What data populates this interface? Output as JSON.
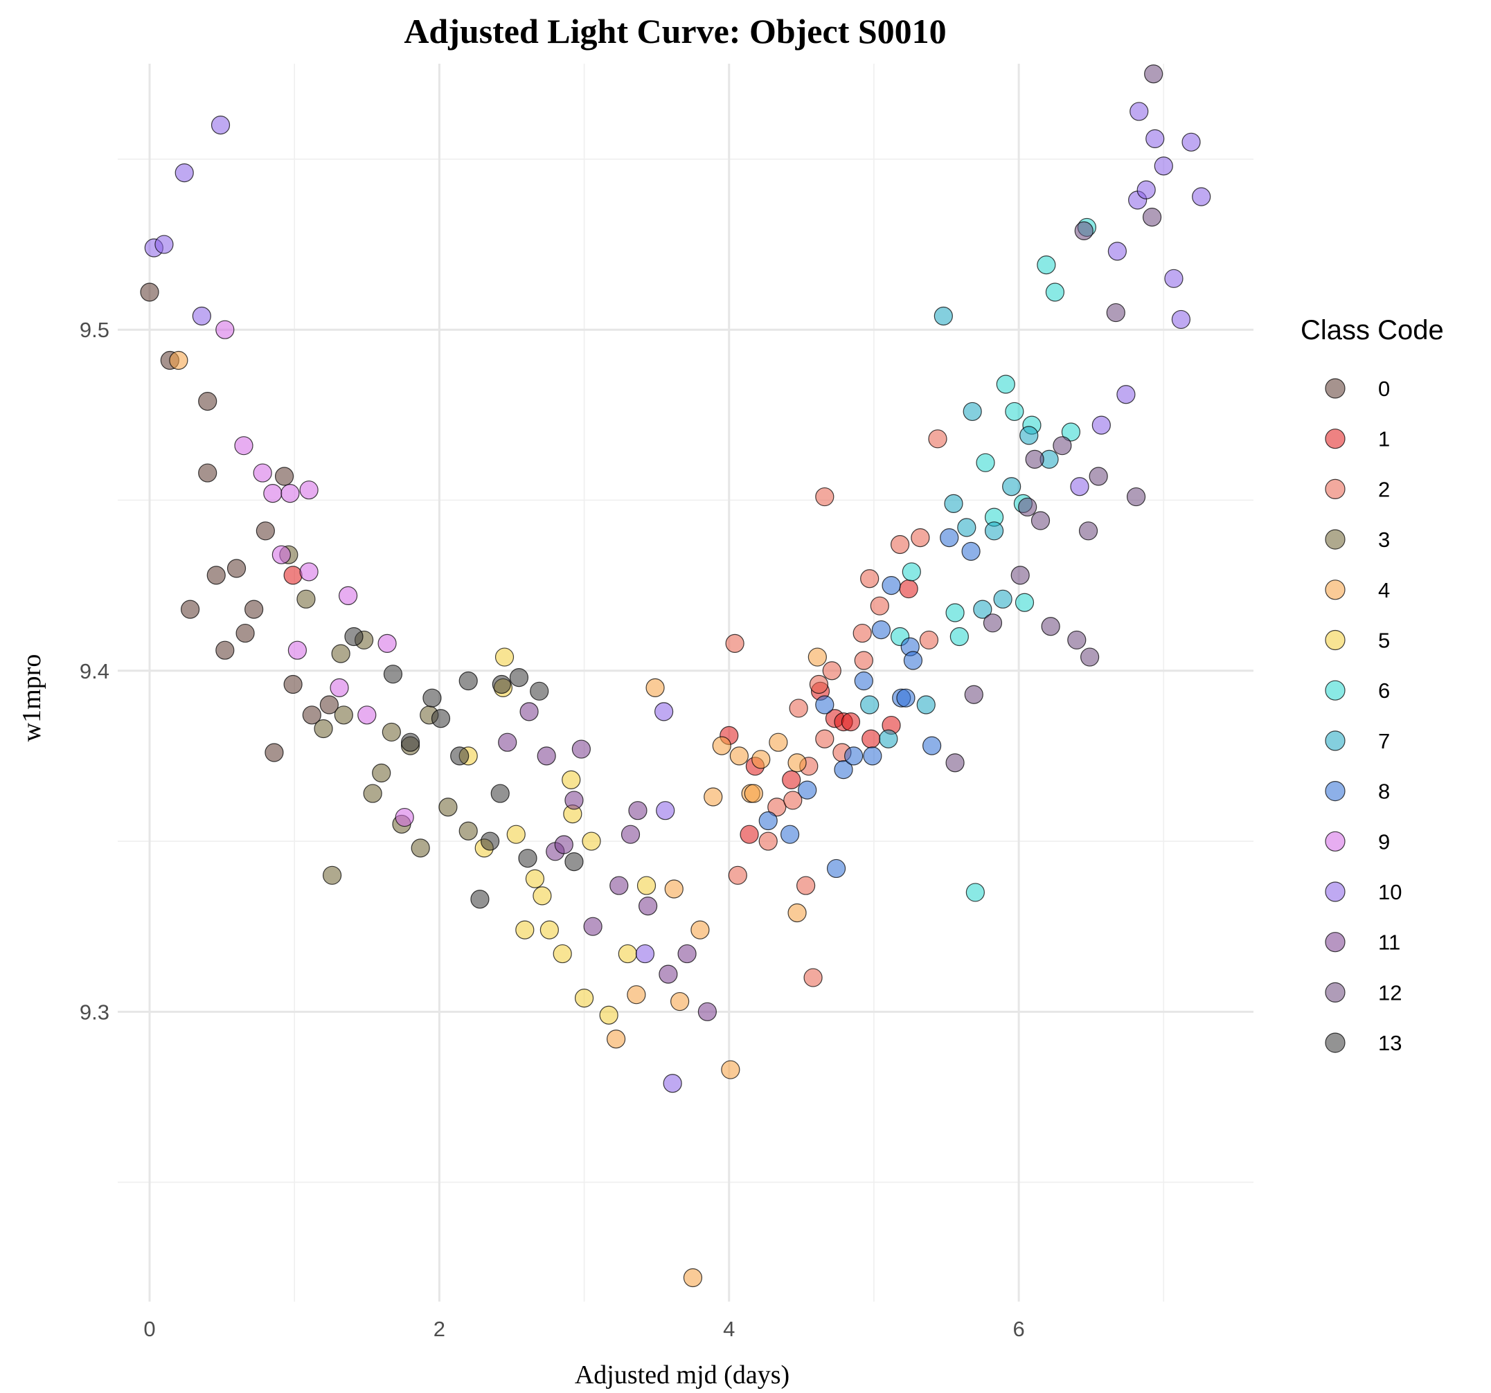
{
  "chart_data": {
    "type": "scatter",
    "title": "Adjusted Light Curve: Object S0010",
    "xlabel": "Adjusted mjd (days)",
    "ylabel": "w1mpro",
    "xlim": [
      -0.22,
      7.62
    ],
    "ylim": [
      9.215,
      9.578
    ],
    "xticks": [
      0,
      2,
      4,
      6
    ],
    "yticks": [
      9.3,
      9.4,
      9.5
    ],
    "grid": true,
    "legend": {
      "title": "Class Code",
      "placement": "right"
    },
    "series": [
      {
        "name": "0",
        "color": "#5c3b32",
        "points": [
          [
            0.0,
            9.511
          ],
          [
            0.14,
            9.491
          ],
          [
            0.4,
            9.479
          ],
          [
            0.4,
            9.458
          ],
          [
            0.28,
            9.418
          ],
          [
            0.46,
            9.428
          ],
          [
            0.52,
            9.406
          ],
          [
            0.6,
            9.43
          ],
          [
            0.66,
            9.411
          ],
          [
            0.72,
            9.418
          ],
          [
            0.8,
            9.441
          ],
          [
            0.86,
            9.376
          ],
          [
            0.93,
            9.457
          ],
          [
            0.99,
            9.396
          ],
          [
            1.12,
            9.387
          ],
          [
            1.24,
            9.39
          ]
        ]
      },
      {
        "name": "1",
        "color": "#e01b1b",
        "points": [
          [
            0.99,
            9.428
          ],
          [
            4.0,
            9.381
          ],
          [
            4.14,
            9.352
          ],
          [
            4.18,
            9.372
          ],
          [
            4.43,
            9.368
          ],
          [
            4.63,
            9.394
          ],
          [
            4.73,
            9.386
          ],
          [
            4.79,
            9.385
          ],
          [
            4.84,
            9.385
          ],
          [
            4.98,
            9.38
          ],
          [
            5.12,
            9.384
          ],
          [
            5.24,
            9.424
          ]
        ]
      },
      {
        "name": "2",
        "color": "#e8624f",
        "points": [
          [
            4.04,
            9.408
          ],
          [
            4.06,
            9.34
          ],
          [
            4.27,
            9.35
          ],
          [
            4.33,
            9.36
          ],
          [
            4.44,
            9.362
          ],
          [
            4.48,
            9.389
          ],
          [
            4.53,
            9.337
          ],
          [
            4.55,
            9.372
          ],
          [
            4.58,
            9.31
          ],
          [
            4.62,
            9.396
          ],
          [
            4.66,
            9.451
          ],
          [
            4.66,
            9.38
          ],
          [
            4.71,
            9.4
          ],
          [
            4.78,
            9.376
          ],
          [
            4.92,
            9.411
          ],
          [
            4.93,
            9.403
          ],
          [
            4.97,
            9.427
          ],
          [
            5.04,
            9.419
          ],
          [
            5.18,
            9.437
          ],
          [
            5.32,
            9.439
          ],
          [
            5.38,
            9.409
          ],
          [
            5.44,
            9.468
          ]
        ]
      },
      {
        "name": "3",
        "color": "#6e6231",
        "points": [
          [
            0.96,
            9.434
          ],
          [
            1.08,
            9.421
          ],
          [
            1.2,
            9.383
          ],
          [
            1.26,
            9.34
          ],
          [
            1.32,
            9.405
          ],
          [
            1.34,
            9.387
          ],
          [
            1.48,
            9.409
          ],
          [
            1.54,
            9.364
          ],
          [
            1.6,
            9.37
          ],
          [
            1.67,
            9.382
          ],
          [
            1.74,
            9.355
          ],
          [
            1.8,
            9.378
          ],
          [
            1.87,
            9.348
          ],
          [
            1.93,
            9.387
          ],
          [
            2.06,
            9.36
          ],
          [
            2.2,
            9.353
          ]
        ]
      },
      {
        "name": "4",
        "color": "#f5a142",
        "points": [
          [
            0.2,
            9.491
          ],
          [
            3.22,
            9.292
          ],
          [
            3.36,
            9.305
          ],
          [
            3.49,
            9.395
          ],
          [
            3.62,
            9.336
          ],
          [
            3.66,
            9.303
          ],
          [
            3.75,
            9.222
          ],
          [
            3.8,
            9.324
          ],
          [
            3.89,
            9.363
          ],
          [
            3.95,
            9.378
          ],
          [
            4.01,
            9.283
          ],
          [
            4.07,
            9.375
          ],
          [
            4.15,
            9.364
          ],
          [
            4.17,
            9.364
          ],
          [
            4.22,
            9.374
          ],
          [
            4.34,
            9.379
          ],
          [
            4.47,
            9.329
          ],
          [
            4.47,
            9.373
          ],
          [
            4.61,
            9.404
          ]
        ]
      },
      {
        "name": "5",
        "color": "#f2ce3a",
        "points": [
          [
            2.2,
            9.375
          ],
          [
            2.31,
            9.348
          ],
          [
            2.44,
            9.395
          ],
          [
            2.45,
            9.404
          ],
          [
            2.53,
            9.352
          ],
          [
            2.59,
            9.324
          ],
          [
            2.66,
            9.339
          ],
          [
            2.71,
            9.334
          ],
          [
            2.76,
            9.324
          ],
          [
            2.85,
            9.317
          ],
          [
            2.91,
            9.368
          ],
          [
            2.92,
            9.358
          ],
          [
            3.0,
            9.304
          ],
          [
            3.05,
            9.35
          ],
          [
            3.17,
            9.299
          ],
          [
            3.3,
            9.317
          ],
          [
            3.43,
            9.337
          ]
        ]
      },
      {
        "name": "6",
        "color": "#2ad7d0",
        "points": [
          [
            5.18,
            9.41
          ],
          [
            5.26,
            9.429
          ],
          [
            5.56,
            9.417
          ],
          [
            5.59,
            9.41
          ],
          [
            5.7,
            9.335
          ],
          [
            5.77,
            9.461
          ],
          [
            5.83,
            9.445
          ],
          [
            5.91,
            9.484
          ],
          [
            5.97,
            9.476
          ],
          [
            6.03,
            9.449
          ],
          [
            6.04,
            9.42
          ],
          [
            6.09,
            9.472
          ],
          [
            6.19,
            9.519
          ],
          [
            6.25,
            9.511
          ],
          [
            6.36,
            9.47
          ],
          [
            6.47,
            9.53
          ]
        ]
      },
      {
        "name": "7",
        "color": "#1fa8c2",
        "points": [
          [
            4.97,
            9.39
          ],
          [
            5.1,
            9.38
          ],
          [
            5.36,
            9.39
          ],
          [
            5.48,
            9.504
          ],
          [
            5.55,
            9.449
          ],
          [
            5.64,
            9.442
          ],
          [
            5.68,
            9.476
          ],
          [
            5.75,
            9.418
          ],
          [
            5.83,
            9.441
          ],
          [
            5.89,
            9.421
          ],
          [
            5.95,
            9.454
          ],
          [
            6.07,
            9.469
          ],
          [
            6.21,
            9.462
          ]
        ]
      },
      {
        "name": "8",
        "color": "#2f6fd6",
        "points": [
          [
            4.27,
            9.356
          ],
          [
            4.42,
            9.352
          ],
          [
            4.54,
            9.365
          ],
          [
            4.66,
            9.39
          ],
          [
            4.74,
            9.342
          ],
          [
            4.79,
            9.371
          ],
          [
            4.86,
            9.375
          ],
          [
            4.93,
            9.397
          ],
          [
            4.99,
            9.375
          ],
          [
            5.05,
            9.412
          ],
          [
            5.12,
            9.425
          ],
          [
            5.19,
            9.392
          ],
          [
            5.22,
            9.392
          ],
          [
            5.25,
            9.407
          ],
          [
            5.27,
            9.403
          ],
          [
            5.4,
            9.378
          ],
          [
            5.52,
            9.439
          ],
          [
            5.67,
            9.435
          ]
        ]
      },
      {
        "name": "9",
        "color": "#d46ae6",
        "points": [
          [
            0.52,
            9.5
          ],
          [
            0.65,
            9.466
          ],
          [
            0.78,
            9.458
          ],
          [
            0.85,
            9.452
          ],
          [
            0.91,
            9.434
          ],
          [
            0.97,
            9.452
          ],
          [
            1.02,
            9.406
          ],
          [
            1.1,
            9.453
          ],
          [
            1.1,
            9.429
          ],
          [
            1.31,
            9.395
          ],
          [
            1.37,
            9.422
          ],
          [
            1.5,
            9.387
          ],
          [
            1.64,
            9.408
          ],
          [
            1.76,
            9.357
          ]
        ]
      },
      {
        "name": "10",
        "color": "#8a63e8",
        "points": [
          [
            0.03,
            9.524
          ],
          [
            0.1,
            9.525
          ],
          [
            0.24,
            9.546
          ],
          [
            0.36,
            9.504
          ],
          [
            0.49,
            9.56
          ],
          [
            3.42,
            9.317
          ],
          [
            3.55,
            9.388
          ],
          [
            3.56,
            9.359
          ],
          [
            3.61,
            9.279
          ],
          [
            6.42,
            9.454
          ],
          [
            6.57,
            9.472
          ],
          [
            6.68,
            9.523
          ],
          [
            6.74,
            9.481
          ],
          [
            6.82,
            9.538
          ],
          [
            6.83,
            9.564
          ],
          [
            6.88,
            9.541
          ],
          [
            6.94,
            9.556
          ],
          [
            7.0,
            9.548
          ],
          [
            7.07,
            9.515
          ],
          [
            7.12,
            9.503
          ],
          [
            7.19,
            9.555
          ],
          [
            7.26,
            9.539
          ]
        ]
      },
      {
        "name": "11",
        "color": "#7b3f8f",
        "points": [
          [
            2.47,
            9.379
          ],
          [
            2.62,
            9.388
          ],
          [
            2.74,
            9.375
          ],
          [
            2.8,
            9.347
          ],
          [
            2.86,
            9.349
          ],
          [
            2.93,
            9.362
          ],
          [
            2.98,
            9.377
          ],
          [
            3.06,
            9.325
          ],
          [
            3.24,
            9.337
          ],
          [
            3.32,
            9.352
          ],
          [
            3.37,
            9.359
          ],
          [
            3.44,
            9.331
          ],
          [
            3.58,
            9.311
          ],
          [
            3.71,
            9.317
          ],
          [
            3.85,
            9.3
          ]
        ]
      },
      {
        "name": "12",
        "color": "#6e4a7d",
        "points": [
          [
            5.69,
            9.393
          ],
          [
            5.56,
            9.373
          ],
          [
            5.82,
            9.414
          ],
          [
            6.01,
            9.428
          ],
          [
            6.06,
            9.448
          ],
          [
            6.11,
            9.462
          ],
          [
            6.15,
            9.444
          ],
          [
            6.22,
            9.413
          ],
          [
            6.3,
            9.466
          ],
          [
            6.4,
            9.409
          ],
          [
            6.45,
            9.529
          ],
          [
            6.48,
            9.441
          ],
          [
            6.49,
            9.404
          ],
          [
            6.55,
            9.457
          ],
          [
            6.67,
            9.505
          ],
          [
            6.81,
            9.451
          ],
          [
            6.92,
            9.533
          ],
          [
            6.93,
            9.575
          ]
        ]
      },
      {
        "name": "13",
        "color": "#3a3a3a",
        "points": [
          [
            1.41,
            9.41
          ],
          [
            1.68,
            9.399
          ],
          [
            1.8,
            9.379
          ],
          [
            1.95,
            9.392
          ],
          [
            2.01,
            9.386
          ],
          [
            2.14,
            9.375
          ],
          [
            2.2,
            9.397
          ],
          [
            2.28,
            9.333
          ],
          [
            2.35,
            9.35
          ],
          [
            2.42,
            9.364
          ],
          [
            2.43,
            9.396
          ],
          [
            2.55,
            9.398
          ],
          [
            2.61,
            9.345
          ],
          [
            2.69,
            9.394
          ],
          [
            2.93,
            9.344
          ]
        ]
      }
    ]
  }
}
